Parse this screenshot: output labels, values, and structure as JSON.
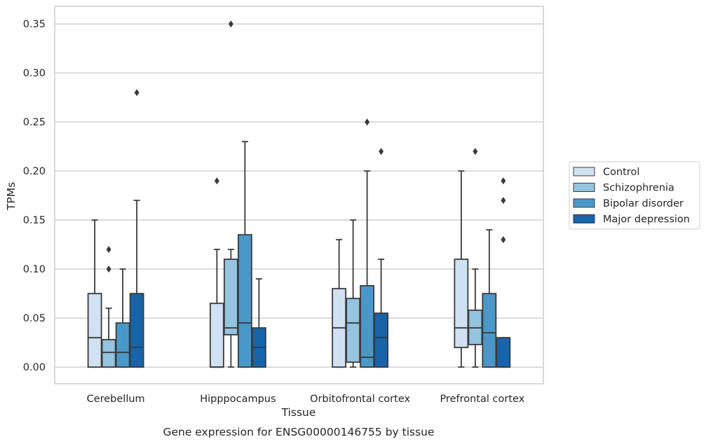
{
  "chart_data": {
    "type": "boxplot",
    "title": "",
    "caption": "Gene expression for ENSG00000146755 by tissue",
    "xlabel": "Tissue",
    "ylabel": "TPMs",
    "ylim": [
      -0.017,
      0.368
    ],
    "yticks": [
      "0.00",
      "0.05",
      "0.10",
      "0.15",
      "0.20",
      "0.25",
      "0.30",
      "0.35"
    ],
    "ytick_values": [
      0,
      0.05,
      0.1,
      0.15,
      0.2,
      0.25,
      0.3,
      0.35
    ],
    "grid": "horizontal",
    "legend_position": "right",
    "categories": [
      "Cerebellum",
      "Hipppocampus",
      "Orbitofrontal cortex",
      "Prefrontal cortex"
    ],
    "series": [
      {
        "name": "Control",
        "color": "#d0e1f2",
        "boxes": [
          {
            "min": 0,
            "q1": 0,
            "median": 0.03,
            "q3": 0.075,
            "max": 0.15,
            "outliers": []
          },
          {
            "min": 0,
            "q1": 0,
            "median": 0,
            "q3": 0.065,
            "max": 0.12,
            "outliers": [
              0.19
            ]
          },
          {
            "min": 0,
            "q1": 0,
            "median": 0.04,
            "q3": 0.08,
            "max": 0.13,
            "outliers": []
          },
          {
            "min": 0,
            "q1": 0.02,
            "median": 0.04,
            "q3": 0.11,
            "max": 0.2,
            "outliers": []
          }
        ]
      },
      {
        "name": "Schizophrenia",
        "color": "#94c4df",
        "boxes": [
          {
            "min": 0,
            "q1": 0,
            "median": 0.015,
            "q3": 0.028,
            "max": 0.06,
            "outliers": [
              0.1,
              0.12
            ]
          },
          {
            "min": 0,
            "q1": 0.033,
            "median": 0.04,
            "q3": 0.11,
            "max": 0.12,
            "outliers": [
              0.35
            ]
          },
          {
            "min": 0,
            "q1": 0.005,
            "median": 0.045,
            "q3": 0.07,
            "max": 0.15,
            "outliers": []
          },
          {
            "min": 0,
            "q1": 0.023,
            "median": 0.04,
            "q3": 0.058,
            "max": 0.1,
            "outliers": [
              0.22
            ]
          }
        ]
      },
      {
        "name": "Bipolar disorder",
        "color": "#4a98c9",
        "boxes": [
          {
            "min": 0,
            "q1": 0,
            "median": 0.015,
            "q3": 0.045,
            "max": 0.1,
            "outliers": []
          },
          {
            "min": 0,
            "q1": 0,
            "median": 0.045,
            "q3": 0.135,
            "max": 0.23,
            "outliers": []
          },
          {
            "min": 0,
            "q1": 0,
            "median": 0.01,
            "q3": 0.083,
            "max": 0.2,
            "outliers": [
              0.25
            ]
          },
          {
            "min": 0,
            "q1": 0,
            "median": 0.035,
            "q3": 0.075,
            "max": 0.14,
            "outliers": []
          }
        ]
      },
      {
        "name": "Major depression",
        "color": "#1764ab",
        "boxes": [
          {
            "min": 0,
            "q1": 0,
            "median": 0.02,
            "q3": 0.075,
            "max": 0.17,
            "outliers": [
              0.28
            ]
          },
          {
            "min": 0,
            "q1": 0,
            "median": 0.02,
            "q3": 0.04,
            "max": 0.09,
            "outliers": []
          },
          {
            "min": 0,
            "q1": 0,
            "median": 0.03,
            "q3": 0.055,
            "max": 0.11,
            "outliers": [
              0.22
            ]
          },
          {
            "min": 0,
            "q1": 0,
            "median": 0,
            "q3": 0.03,
            "max": 0.03,
            "outliers": [
              0.13,
              0.17,
              0.19
            ]
          }
        ]
      }
    ]
  }
}
